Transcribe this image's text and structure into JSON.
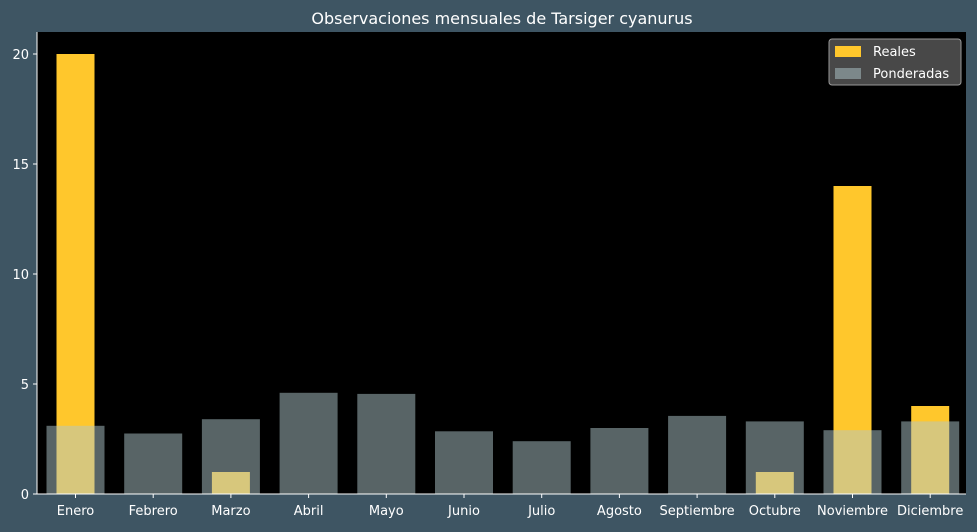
{
  "chart_data": {
    "type": "bar",
    "title": "Observaciones mensuales de Tarsiger cyanurus",
    "xlabel": "",
    "ylabel": "",
    "categories": [
      "Enero",
      "Febrero",
      "Marzo",
      "Abril",
      "Mayo",
      "Junio",
      "Julio",
      "Agosto",
      "Septiembre",
      "Octubre",
      "Noviembre",
      "Diciembre"
    ],
    "series": [
      {
        "name": "Reales",
        "values": [
          20,
          0,
          1,
          0,
          0,
          0,
          0,
          0,
          0,
          1,
          14,
          4
        ],
        "color": "#ffc72c"
      },
      {
        "name": "Ponderadas",
        "values": [
          3.1,
          2.75,
          3.4,
          4.6,
          4.55,
          2.85,
          2.4,
          3.0,
          3.55,
          3.3,
          2.9,
          3.3
        ],
        "color": "#b0c8cc"
      }
    ],
    "ylim": [
      0,
      21
    ],
    "yticks": [
      0,
      5,
      10,
      15,
      20
    ],
    "grid": false,
    "legend": "top-right"
  },
  "colors": {
    "figure_background": "#3e5563",
    "plot_background": "#000000",
    "text": "#ffffff",
    "legend_background": "#555555"
  }
}
